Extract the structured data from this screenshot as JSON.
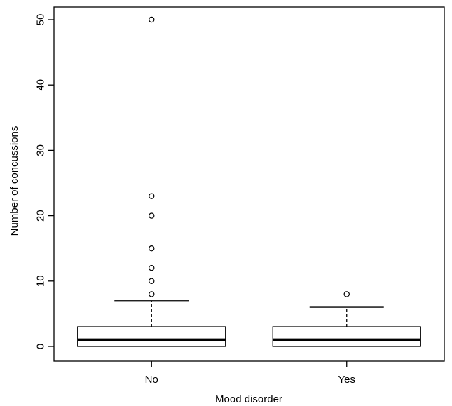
{
  "chart_data": {
    "type": "boxplot",
    "xlabel": "Mood disorder",
    "ylabel": "Number of concussions",
    "ylim": [
      -2.3,
      52
    ],
    "yticks": [
      0,
      10,
      20,
      30,
      40,
      50
    ],
    "categories": [
      "No",
      "Yes"
    ],
    "boxes": [
      {
        "category": "No",
        "min": 0,
        "q1": 0,
        "median": 1,
        "q3": 3,
        "max": 7,
        "outliers": [
          8,
          10,
          12,
          15,
          20,
          23,
          50
        ]
      },
      {
        "category": "Yes",
        "min": 0,
        "q1": 0,
        "median": 1,
        "q3": 3,
        "max": 6,
        "outliers": [
          8
        ]
      }
    ],
    "grid": false,
    "legend": "none"
  }
}
